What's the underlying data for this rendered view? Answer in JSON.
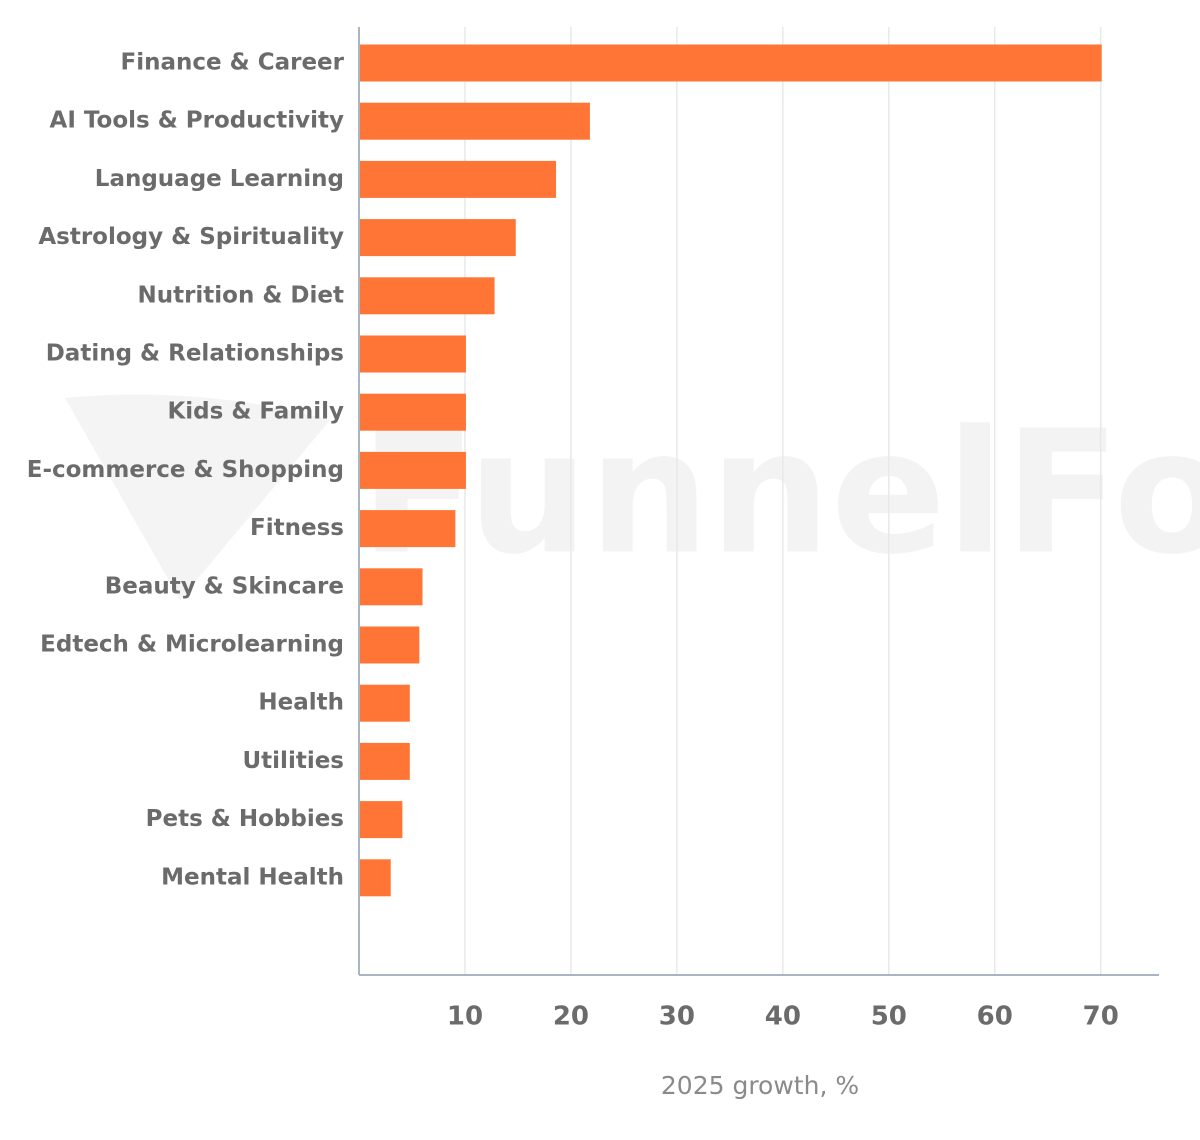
{
  "chart_data": {
    "type": "barh",
    "watermark": "FunnelFox",
    "x_label": "2025 growth, %",
    "categories": [
      "Finance & Career",
      "AI Tools & Productivity",
      "Language Learning",
      "Astrology & Spirituality",
      "Nutrition & Diet",
      "Dating & Relationships",
      "Kids & Family",
      "E-commerce & Shopping",
      "Fitness",
      "Beauty & Skincare",
      "Edtech & Microlearning",
      "Health",
      "Utilities",
      "Pets & Hobbies",
      "Mental Health"
    ],
    "values": [
      70,
      21.7,
      18.5,
      14.7,
      12.7,
      10,
      10,
      10,
      9,
      5.9,
      5.6,
      4.7,
      4.7,
      4,
      2.9
    ],
    "color": "#ff7536",
    "xlim": [
      0,
      75.5
    ],
    "xticks": [
      10,
      20,
      30,
      40,
      50,
      60,
      70
    ],
    "grid": true
  }
}
